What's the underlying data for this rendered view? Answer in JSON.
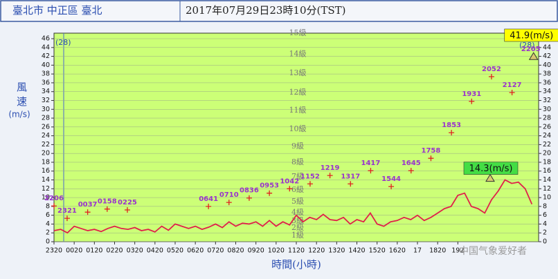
{
  "chart_data": {
    "type": "line",
    "header_location": "臺北市 中正區 臺北",
    "header_time": "2017年07月29日23時10分(TST)",
    "ylabel": "風速",
    "yunit": "(m/s)",
    "xlabel": "時間(小時)",
    "watermark": "中国气象爱好者",
    "direction_labels": [
      "(28)",
      "(28)"
    ],
    "xlim": [
      0,
      1440
    ],
    "xticks": [
      {
        "value": 0,
        "label": "2320"
      },
      {
        "value": 60,
        "label": "0020"
      },
      {
        "value": 120,
        "label": "0120"
      },
      {
        "value": 180,
        "label": "0220"
      },
      {
        "value": 240,
        "label": "0320"
      },
      {
        "value": 300,
        "label": "0420"
      },
      {
        "value": 360,
        "label": "0520"
      },
      {
        "value": 420,
        "label": "0620"
      },
      {
        "value": 480,
        "label": "0720"
      },
      {
        "value": 540,
        "label": "0820"
      },
      {
        "value": 600,
        "label": "0920"
      },
      {
        "value": 660,
        "label": "1020"
      },
      {
        "value": 720,
        "label": "1120"
      },
      {
        "value": 780,
        "label": "1220"
      },
      {
        "value": 840,
        "label": "1320"
      },
      {
        "value": 900,
        "label": "1420"
      },
      {
        "value": 960,
        "label": "1520"
      },
      {
        "value": 1020,
        "label": "1620"
      },
      {
        "value": 1080,
        "label": "17"
      },
      {
        "value": 1140,
        "label": "1820"
      },
      {
        "value": 1200,
        "label": "192"
      }
    ],
    "ylim": [
      0,
      46
    ],
    "yticks": [
      0,
      2,
      4,
      6,
      8,
      10,
      12,
      14,
      16,
      18,
      20,
      22,
      24,
      26,
      28,
      30,
      32,
      34,
      36,
      38,
      40,
      42,
      44,
      46
    ],
    "plot_color": "#ccff77",
    "levels": [
      {
        "value": 1.4,
        "label": "1級"
      },
      {
        "value": 3.1,
        "label": "2級"
      },
      {
        "value": 4.7,
        "label": "3級"
      },
      {
        "value": 6.6,
        "label": "4級"
      },
      {
        "value": 9.1,
        "label": "5級"
      },
      {
        "value": 11.7,
        "label": "6級"
      },
      {
        "value": 14.7,
        "label": "7級"
      },
      {
        "value": 18,
        "label": "8級"
      },
      {
        "value": 21.6,
        "label": "9級"
      },
      {
        "value": 25.5,
        "label": "10級"
      },
      {
        "value": 29.7,
        "label": "11級"
      },
      {
        "value": 33.8,
        "label": "12級"
      },
      {
        "value": 38.2,
        "label": "13級"
      },
      {
        "value": 42.5,
        "label": "14級"
      },
      {
        "value": 47.4,
        "label": "15級"
      }
    ],
    "series": [
      {
        "color": "#e0204a",
        "x": [
          0,
          20,
          40,
          60,
          80,
          100,
          120,
          140,
          160,
          180,
          200,
          220,
          240,
          260,
          280,
          300,
          320,
          340,
          360,
          380,
          400,
          420,
          440,
          460,
          480,
          500,
          520,
          540,
          560,
          580,
          600,
          620,
          640,
          660,
          680,
          700,
          720,
          740,
          760,
          780,
          800,
          820,
          840,
          860,
          880,
          900,
          920,
          940,
          960,
          980,
          1000,
          1020,
          1040,
          1060,
          1080,
          1100,
          1120,
          1140,
          1160,
          1180,
          1200,
          1220,
          1240,
          1260,
          1280,
          1300,
          1320,
          1340,
          1360,
          1380,
          1400,
          1420
        ],
        "values": [
          2.5,
          2.8,
          2.0,
          3.5,
          3.0,
          2.5,
          2.8,
          2.3,
          3.0,
          3.5,
          3.0,
          2.8,
          3.2,
          2.5,
          2.8,
          2.2,
          3.5,
          2.6,
          4.0,
          3.5,
          3.0,
          3.5,
          2.8,
          3.3,
          4.0,
          3.2,
          4.5,
          3.5,
          4.2,
          4.0,
          4.5,
          3.5,
          4.8,
          3.5,
          4.5,
          3.8,
          6.0,
          4.5,
          5.5,
          5.0,
          6.2,
          5.0,
          4.8,
          5.5,
          4.0,
          5.0,
          4.5,
          6.5,
          4.0,
          3.5,
          4.5,
          4.8,
          5.5,
          5.0,
          6.0,
          4.8,
          5.5,
          6.5,
          7.5,
          8.0,
          10.5,
          11.0,
          8.0,
          7.5,
          6.5,
          9.5,
          11.5,
          14.0,
          13.2,
          13.5,
          12.0,
          8.5
        ]
      },
      {
        "color": "#e02020",
        "label_color": "#9933cc",
        "x": [
          0,
          39,
          100,
          158,
          218,
          459,
          520,
          580,
          640,
          700,
          761,
          820,
          881,
          941,
          1002,
          1061,
          1120,
          1181,
          1241,
          1300,
          1361
        ],
        "values": [
          8.1,
          5.3,
          6.7,
          7.4,
          7.2,
          8.0,
          8.9,
          9.9,
          11.0,
          12.0,
          13.1,
          15.0,
          13.1,
          16.1,
          12.5,
          16.1,
          18.9,
          24.7,
          31.8,
          37.4,
          33.8
        ],
        "labels": [
          "2206",
          "2321",
          "0037",
          "0158",
          "0225",
          "0641",
          "0710",
          "0836",
          "0953",
          "1042",
          "1152",
          "1219",
          "1317",
          "1417",
          "1544",
          "1645",
          "1758",
          "1853",
          "1931",
          "2052",
          "2127"
        ]
      }
    ],
    "peaks": {
      "x": [
        1296,
        1425
      ],
      "values": [
        14.3,
        41.9
      ],
      "value_labels": [
        "14.3(m/s)",
        "41.9(m/s)"
      ],
      "times": [
        null,
        "2205"
      ],
      "box_colors": [
        "#44dd44",
        "#ffff00"
      ]
    }
  }
}
